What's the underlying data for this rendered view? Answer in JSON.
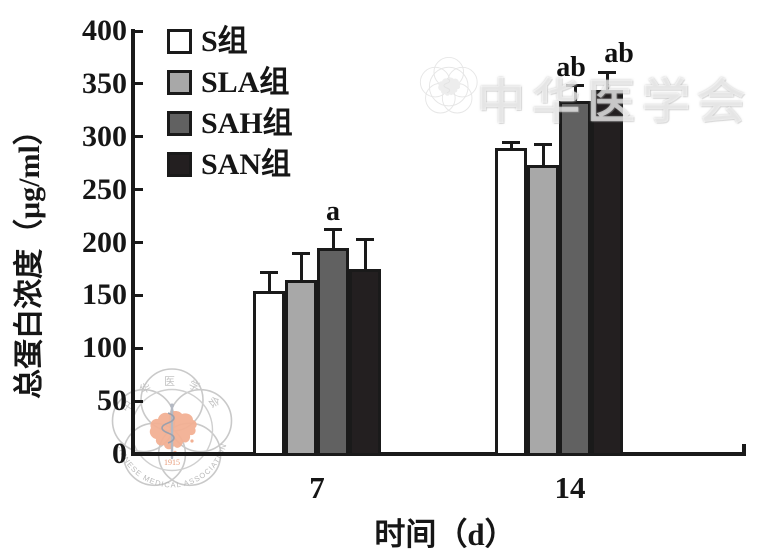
{
  "chart_data": {
    "type": "bar",
    "title": "",
    "xlabel": "时间（d）",
    "ylabel": "总蛋白浓度（μg/ml）",
    "categories": [
      "7",
      "14"
    ],
    "series": [
      {
        "name": "S组",
        "fill": "#ffffff",
        "values": [
          154,
          289
        ],
        "errors": [
          18,
          6
        ]
      },
      {
        "name": "SLA组",
        "fill": "#a8a8a8",
        "values": [
          165,
          273
        ],
        "errors": [
          25,
          20
        ]
      },
      {
        "name": "SAH组",
        "fill": "#616161",
        "values": [
          195,
          334
        ],
        "errors": [
          17,
          14
        ]
      },
      {
        "name": "SAN组",
        "fill": "#231f20",
        "values": [
          175,
          344
        ],
        "errors": [
          28,
          17
        ]
      }
    ],
    "annotations": [
      {
        "text": "a",
        "category": "7",
        "series": "SAH组",
        "dx": 0
      },
      {
        "text": "ab",
        "category": "14",
        "series": "SAH组",
        "dx": -4
      },
      {
        "text": "ab",
        "category": "14",
        "series": "SAN组",
        "dx": 12
      }
    ],
    "ylim": [
      0,
      400
    ],
    "ytick_step": 50,
    "legend_position": "upper-left",
    "grid": false,
    "axis_color": "#1a1a1a",
    "error_bar_style": "cap-top-only"
  },
  "watermark": {
    "center_text": "中华医学会",
    "logo_top_arc_text": "中 华 医 学 会",
    "logo_bottom_arc_text": "CHINESE  MEDICAL  ASSOCIATION",
    "logo_year": "1915",
    "map_color": "#f2b093",
    "ring_color": "#cccccc"
  }
}
